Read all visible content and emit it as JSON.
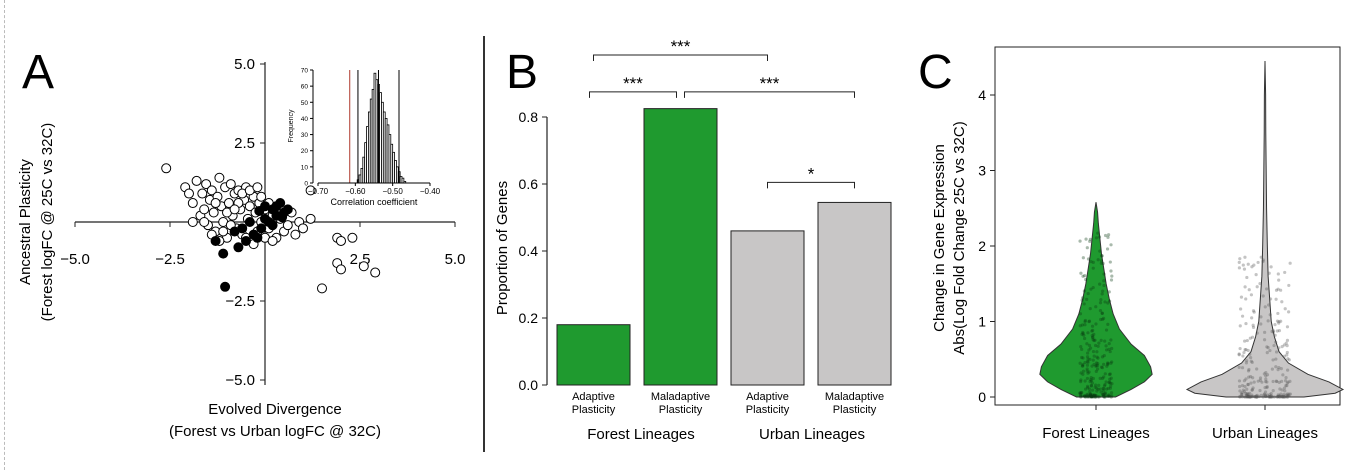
{
  "panel_letters": {
    "a": "A",
    "b": "B",
    "c": "C"
  },
  "chart_data": [
    {
      "type": "scatter",
      "panel": "A",
      "xlabel": "Evolved Divergence",
      "xlabel2": "(Forest vs Urban logFC @ 32C)",
      "ylabel": "Ancestral Plasticity",
      "ylabel2": "(Forest logFC @ 25C vs 32C)",
      "xlim": [
        -5,
        5
      ],
      "ylim": [
        -5,
        5
      ],
      "xticks": [
        "−5.0",
        "−2.5",
        "2.5",
        "5.0"
      ],
      "xtick_values": [
        -5,
        -2.5,
        2.5,
        5
      ],
      "yticks": [
        "5.0",
        "2.5",
        "−2.5",
        "−5.0"
      ],
      "ytick_values": [
        5,
        2.5,
        -2.5,
        -5
      ],
      "series": [
        {
          "fill": "white",
          "points": [
            [
              -2.6,
              1.7
            ],
            [
              -2.1,
              1.1
            ],
            [
              -2.0,
              0.9
            ],
            [
              -1.9,
              0.6
            ],
            [
              -1.8,
              1.3
            ],
            [
              -1.7,
              0.2
            ],
            [
              -1.65,
              0.9
            ],
            [
              -1.6,
              0.4
            ],
            [
              -1.55,
              1.2
            ],
            [
              -1.5,
              -0.1
            ],
            [
              -1.45,
              0.7
            ],
            [
              -1.4,
              1.0
            ],
            [
              -1.35,
              0.3
            ],
            [
              -1.3,
              -0.3
            ],
            [
              -1.25,
              0.8
            ],
            [
              -1.2,
              1.4
            ],
            [
              -1.15,
              0.5
            ],
            [
              -1.1,
              0.0
            ],
            [
              -1.05,
              1.1
            ],
            [
              -1.0,
              -0.5
            ],
            [
              -0.95,
              0.6
            ],
            [
              -0.9,
              1.2
            ],
            [
              -0.85,
              0.2
            ],
            [
              -0.8,
              0.9
            ],
            [
              -0.75,
              -0.2
            ],
            [
              -0.7,
              1.0
            ],
            [
              -0.65,
              0.4
            ],
            [
              -0.6,
              -0.4
            ],
            [
              -0.55,
              0.7
            ],
            [
              -0.5,
              1.1
            ],
            [
              -0.45,
              0.1
            ],
            [
              -0.4,
              0.5
            ],
            [
              -0.35,
              -0.6
            ],
            [
              -0.3,
              0.8
            ],
            [
              -0.25,
              0.3
            ],
            [
              -0.2,
              -0.3
            ],
            [
              -0.15,
              0.6
            ],
            [
              -0.1,
              0.0
            ],
            [
              0.0,
              0.4
            ],
            [
              0.1,
              -0.2
            ],
            [
              0.2,
              0.2
            ],
            [
              0.3,
              -0.5
            ],
            [
              0.4,
              0.1
            ],
            [
              0.5,
              -0.3
            ],
            [
              0.6,
              -0.1
            ],
            [
              0.7,
              0.3
            ],
            [
              0.8,
              -0.4
            ],
            [
              0.9,
              0.0
            ],
            [
              1.0,
              -0.2
            ],
            [
              1.2,
              0.1
            ],
            [
              -1.6,
              0.0
            ],
            [
              -1.4,
              -0.4
            ],
            [
              -1.2,
              -0.6
            ],
            [
              -0.9,
              -0.1
            ],
            [
              -0.7,
              0.6
            ],
            [
              -0.5,
              -0.5
            ],
            [
              -0.3,
              -0.7
            ],
            [
              -0.1,
              0.8
            ],
            [
              0.1,
              0.6
            ],
            [
              0.3,
              0.5
            ],
            [
              -1.9,
              0.0
            ],
            [
              -1.0,
              0.3
            ],
            [
              -0.8,
              0.4
            ],
            [
              -0.6,
              0.9
            ],
            [
              -0.4,
              1.0
            ],
            [
              -0.2,
              1.1
            ],
            [
              0.0,
              -0.5
            ],
            [
              0.2,
              -0.6
            ],
            [
              -1.3,
              0.6
            ],
            [
              -1.1,
              -0.3
            ],
            [
              1.2,
              1.0
            ],
            [
              1.9,
              -0.5
            ],
            [
              2.0,
              -0.6
            ],
            [
              2.3,
              -0.5
            ],
            [
              1.9,
              -1.3
            ],
            [
              2.0,
              -1.5
            ],
            [
              2.6,
              -1.4
            ],
            [
              2.9,
              -1.6
            ],
            [
              1.5,
              -2.1
            ]
          ]
        },
        {
          "fill": "black",
          "points": [
            [
              0.0,
              0.5
            ],
            [
              0.2,
              0.4
            ],
            [
              0.3,
              0.2
            ],
            [
              0.4,
              0.6
            ],
            [
              0.5,
              0.3
            ],
            [
              0.2,
              -0.1
            ],
            [
              0.0,
              0.1
            ],
            [
              -0.1,
              -0.2
            ],
            [
              -0.3,
              -0.4
            ],
            [
              -0.5,
              -0.6
            ],
            [
              -0.7,
              -0.8
            ],
            [
              -0.2,
              -0.5
            ],
            [
              0.1,
              0.0
            ],
            [
              0.3,
              0.5
            ],
            [
              0.6,
              0.4
            ],
            [
              -0.4,
              0.0
            ],
            [
              -0.6,
              -0.2
            ],
            [
              -1.1,
              -1.0
            ],
            [
              -1.3,
              -0.6
            ],
            [
              -0.8,
              -0.3
            ],
            [
              -0.15,
              0.35
            ],
            [
              0.45,
              0.15
            ],
            [
              -1.05,
              -2.05
            ]
          ]
        }
      ],
      "inset": {
        "type": "bar",
        "xlabel": "Correlation coefficient",
        "ylabel": "Frequency",
        "xlim": [
          -0.7,
          -0.4
        ],
        "ylim": [
          0,
          70
        ],
        "xticks": [
          "−0.70",
          "−0.60",
          "−0.50",
          "−0.40"
        ],
        "xtick_values": [
          -0.7,
          -0.6,
          -0.5,
          -0.4
        ],
        "yticks": [
          "0",
          "10",
          "20",
          "30",
          "40",
          "50",
          "60",
          "70"
        ],
        "ytick_values": [
          0,
          10,
          20,
          30,
          40,
          50,
          60,
          70
        ],
        "bin_width": 0.005,
        "bins": [
          {
            "x": -0.595,
            "count": 2
          },
          {
            "x": -0.59,
            "count": 5
          },
          {
            "x": -0.585,
            "count": 9
          },
          {
            "x": -0.58,
            "count": 16
          },
          {
            "x": -0.575,
            "count": 25
          },
          {
            "x": -0.57,
            "count": 35
          },
          {
            "x": -0.565,
            "count": 44
          },
          {
            "x": -0.56,
            "count": 52
          },
          {
            "x": -0.555,
            "count": 58
          },
          {
            "x": -0.55,
            "count": 68
          },
          {
            "x": -0.545,
            "count": 64
          },
          {
            "x": -0.54,
            "count": 61
          },
          {
            "x": -0.535,
            "count": 56
          },
          {
            "x": -0.53,
            "count": 50
          },
          {
            "x": -0.525,
            "count": 44
          },
          {
            "x": -0.52,
            "count": 40
          },
          {
            "x": -0.515,
            "count": 36
          },
          {
            "x": -0.51,
            "count": 30
          },
          {
            "x": -0.505,
            "count": 24
          },
          {
            "x": -0.5,
            "count": 19
          },
          {
            "x": -0.495,
            "count": 14
          },
          {
            "x": -0.49,
            "count": 10
          },
          {
            "x": -0.485,
            "count": 7
          },
          {
            "x": -0.48,
            "count": 4
          },
          {
            "x": -0.475,
            "count": 3
          },
          {
            "x": -0.47,
            "count": 1
          }
        ],
        "vlines": [
          {
            "x": -0.615,
            "color": "#b03a2e"
          },
          {
            "x": -0.593,
            "color": "#000000"
          },
          {
            "x": -0.538,
            "color": "#000000"
          },
          {
            "x": -0.483,
            "color": "#000000"
          }
        ]
      }
    },
    {
      "type": "bar",
      "panel": "B",
      "ylabel": "Proportion of Genes",
      "ylim": [
        0,
        0.85
      ],
      "yticks": [
        "0.0",
        "0.2",
        "0.4",
        "0.6",
        "0.8"
      ],
      "ytick_values": [
        0.0,
        0.2,
        0.4,
        0.6,
        0.8
      ],
      "categories": [
        [
          "Adaptive",
          "Plasticity"
        ],
        [
          "Maladaptive",
          "Plasticity"
        ],
        [
          "Adaptive",
          "Plasticity"
        ],
        [
          "Maladaptive",
          "Plasticity"
        ]
      ],
      "values": [
        0.18,
        0.825,
        0.46,
        0.545
      ],
      "colors": [
        "#1f9a2f",
        "#1f9a2f",
        "#c8c6c6",
        "#c8c6c6"
      ],
      "groups": [
        "Forest Lineages",
        "Urban Lineages"
      ],
      "significance": [
        {
          "from": 0,
          "to": 1,
          "label": "***",
          "level": 0.875
        },
        {
          "from": 1,
          "to": 3,
          "label": "***",
          "level": 0.875
        },
        {
          "from": 0,
          "to": 2,
          "label": "***",
          "level": 0.985
        },
        {
          "from": 2,
          "to": 3,
          "label": "*",
          "level": 0.605
        }
      ]
    },
    {
      "type": "violin",
      "panel": "C",
      "ylabel": "Change in Gene Expression",
      "ylabel2": "Abs(Log Fold Change 25C vs 32C)",
      "ylim": [
        -0.1,
        4.55
      ],
      "yticks": [
        "0",
        "1",
        "2",
        "3",
        "4"
      ],
      "ytick_values": [
        0,
        1,
        2,
        3,
        4
      ],
      "categories": [
        "Forest Lineages",
        "Urban Lineages"
      ],
      "colors": [
        "#1f9a2f",
        "#c8c6c6"
      ],
      "violins": [
        {
          "max": 2.58,
          "profile": [
            [
              0,
              0.25
            ],
            [
              0.1,
              0.45
            ],
            [
              0.2,
              0.62
            ],
            [
              0.3,
              0.72
            ],
            [
              0.4,
              0.7
            ],
            [
              0.55,
              0.62
            ],
            [
              0.7,
              0.45
            ],
            [
              0.9,
              0.3
            ],
            [
              1.1,
              0.22
            ],
            [
              1.3,
              0.17
            ],
            [
              1.5,
              0.13
            ],
            [
              1.7,
              0.1
            ],
            [
              1.9,
              0.07
            ],
            [
              2.1,
              0.05
            ],
            [
              2.3,
              0.03
            ],
            [
              2.45,
              0.02
            ],
            [
              2.58,
              0
            ]
          ]
        },
        {
          "max": 4.45,
          "profile": [
            [
              0,
              0.5
            ],
            [
              0.05,
              0.9
            ],
            [
              0.1,
              1.0
            ],
            [
              0.2,
              0.82
            ],
            [
              0.3,
              0.55
            ],
            [
              0.45,
              0.3
            ],
            [
              0.6,
              0.18
            ],
            [
              0.8,
              0.12
            ],
            [
              1.0,
              0.08
            ],
            [
              1.3,
              0.06
            ],
            [
              1.6,
              0.04
            ],
            [
              2.0,
              0.03
            ],
            [
              2.5,
              0.02
            ],
            [
              3.0,
              0.015
            ],
            [
              3.5,
              0.01
            ],
            [
              4.0,
              0.008
            ],
            [
              4.45,
              0
            ]
          ]
        }
      ]
    }
  ]
}
